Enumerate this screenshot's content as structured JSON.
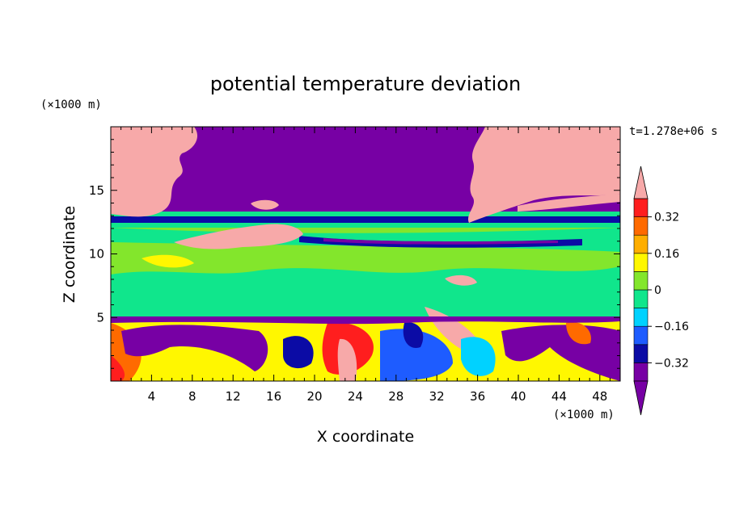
{
  "chart_data": {
    "type": "heatmap",
    "title": "potential temperature deviation",
    "xlabel": "X coordinate",
    "ylabel": "Z coordinate",
    "x_unit": "(×1000 m)",
    "y_unit": "(×1000 m)",
    "time_label": "t=1.278e+06 s",
    "xlim": [
      0,
      50
    ],
    "ylim": [
      0,
      20
    ],
    "x_ticks": [
      "4",
      "8",
      "12",
      "16",
      "20",
      "24",
      "28",
      "32",
      "36",
      "40",
      "44",
      "48"
    ],
    "y_ticks": [
      "5",
      "10",
      "15"
    ],
    "colorbar": {
      "levels": [
        -0.4,
        -0.32,
        -0.24,
        -0.16,
        -0.08,
        0,
        0.08,
        0.16,
        0.24,
        0.32,
        0.4
      ],
      "labels": [
        "0.32",
        "0.16",
        "0",
        "-0.16",
        "-0.32"
      ],
      "colors_low_to_high": [
        "#7700a4",
        "#0b0ba5",
        "#1e5cff",
        "#00d2ff",
        "#10e68c",
        "#83e62c",
        "#fff700",
        "#ffae00",
        "#ff6a00",
        "#ff1e1e"
      ],
      "under_color": "#7700a4",
      "over_color": "#f7a9a9",
      "extend": "both"
    },
    "field_description_by_layer": [
      {
        "z_range": [
          0,
          5
        ],
        "description": "turbulent boundary layer, mixed positive and negative deviations"
      },
      {
        "z_range": [
          5,
          10
        ],
        "description": "near-neutral, mostly 0 to 0.08"
      },
      {
        "z_range": [
          10,
          13
        ],
        "description": "stable layer band with cold dip near z=11"
      },
      {
        "z_range": [
          13,
          20
        ],
        "description": "strong cold anomaly in centre, strong warm anomalies at left and right"
      }
    ]
  }
}
